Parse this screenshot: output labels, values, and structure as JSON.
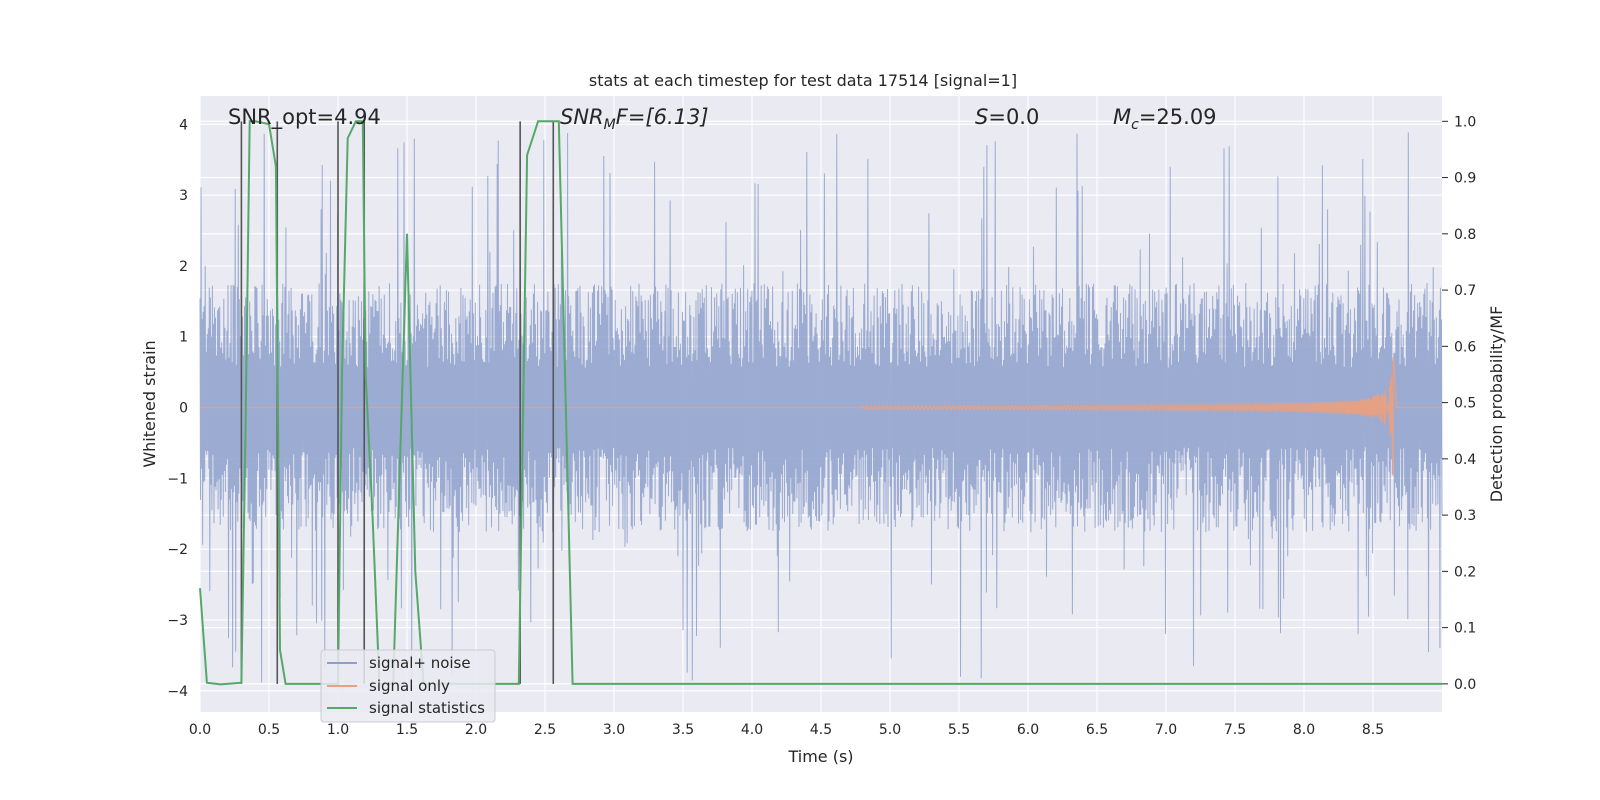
{
  "chart_data": {
    "type": "line",
    "title": "stats at each timestep for test data 17514 [signal=1]",
    "xlabel": "Time (s)",
    "ylabel": "Whitened strain",
    "ylabel_right": "Detection probability/MF",
    "xlim": [
      0.0,
      9.0
    ],
    "ylim": [
      -4.3,
      4.4
    ],
    "ylim_right": [
      -0.05,
      1.045
    ],
    "x_ticks": [
      "0.0",
      "0.5",
      "1.0",
      "1.5",
      "2.0",
      "2.5",
      "3.0",
      "3.5",
      "4.0",
      "4.5",
      "5.0",
      "5.5",
      "6.0",
      "6.5",
      "7.0",
      "7.5",
      "8.0",
      "8.5"
    ],
    "y_ticks": [
      "−4",
      "−3",
      "−2",
      "−1",
      "0",
      "1",
      "2",
      "3",
      "4"
    ],
    "y_right_ticks": [
      "0.0",
      "0.1",
      "0.2",
      "0.3",
      "0.4",
      "0.5",
      "0.6",
      "0.7",
      "0.8",
      "0.9",
      "1.0"
    ],
    "grid": true,
    "legend": "lower-left",
    "annotations": {
      "snr_opt": "SNR_opt=4.94",
      "snr_mf": "SNR",
      "snr_mf_sub": "M",
      "snr_mf_tail": "F=[6.13]",
      "s": "S",
      "s_value": "=0.0",
      "mc": "M",
      "mc_sub": "c",
      "mc_value": "=25.09"
    },
    "series": [
      {
        "name": "signal+ noise",
        "color": "#8da0cb",
        "kind": "noise",
        "typical_amplitude": 1.6,
        "max_amplitude": 3.9
      },
      {
        "name": "signal only",
        "color": "#e5a186",
        "kind": "chirp",
        "x_start": 4.8,
        "x_merger": 8.65,
        "peak_amplitude": 1.15,
        "min_value": -1.05
      },
      {
        "name": "signal statistics",
        "color": "#55a868",
        "axis": "right",
        "x": [
          0.0,
          0.05,
          0.15,
          0.3,
          0.33,
          0.36,
          0.4,
          0.5,
          0.55,
          0.58,
          0.62,
          0.7,
          0.9,
          1.0,
          1.03,
          1.07,
          1.13,
          1.18,
          1.2,
          1.25,
          1.3,
          1.35,
          1.4,
          1.5,
          1.56,
          1.62,
          1.8,
          2.0,
          2.2,
          2.31,
          2.37,
          2.45,
          2.6,
          2.7,
          3.0,
          4.0,
          5.0,
          6.0,
          7.0,
          8.0,
          9.0
        ],
        "y": [
          0.17,
          0.002,
          -0.001,
          0.002,
          0.45,
          1.0,
          1.0,
          0.995,
          0.92,
          0.06,
          0.0,
          0.0,
          0.0,
          0.0,
          0.56,
          0.97,
          1.0,
          1.0,
          0.55,
          0.3,
          0.0,
          0.0,
          0.0,
          0.8,
          0.2,
          0.0,
          0.0,
          0.0,
          0.0,
          0.0,
          0.94,
          1.0,
          1.0,
          0.0,
          0.0,
          0.0,
          0.0,
          0.0,
          0.0,
          0.0,
          0.0
        ]
      }
    ],
    "vertical_markers": [
      {
        "x": 0.3,
        "y_from": 0.0,
        "y_to": 1.0
      },
      {
        "x": 0.56,
        "y_from": 0.0,
        "y_to": 1.0
      },
      {
        "x": 1.0,
        "y_from": 0.0,
        "y_to": 1.0
      },
      {
        "x": 1.19,
        "y_from": 0.0,
        "y_to": 1.0
      },
      {
        "x": 2.32,
        "y_from": 0.0,
        "y_to": 1.0
      },
      {
        "x": 2.56,
        "y_from": 0.0,
        "y_to": 1.0
      }
    ]
  },
  "colors": {
    "axes_background": "#eaeaf2",
    "grid": "#ffffff",
    "marker_line": "#555555"
  }
}
